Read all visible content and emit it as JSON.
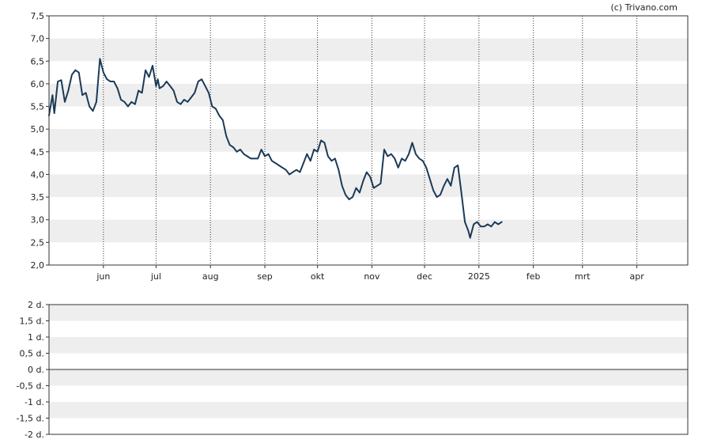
{
  "credit": "(c) Trivano.com",
  "chart_data": [
    {
      "type": "line",
      "ylim": [
        2.0,
        7.5
      ],
      "yticks": [
        "7,5",
        "7,0",
        "6,5",
        "6,0",
        "5,5",
        "5,0",
        "4,5",
        "4,0",
        "3,5",
        "3,0",
        "2,5",
        "2,0"
      ],
      "months": [
        {
          "label": "jun",
          "day": 31
        },
        {
          "label": "jul",
          "day": 61
        },
        {
          "label": "aug",
          "day": 92
        },
        {
          "label": "sep",
          "day": 123
        },
        {
          "label": "okt",
          "day": 153
        },
        {
          "label": "nov",
          "day": 184
        },
        {
          "label": "dec",
          "day": 214
        },
        {
          "label": "2025",
          "day": 245
        },
        {
          "label": "feb",
          "day": 276
        },
        {
          "label": "mrt",
          "day": 304
        },
        {
          "label": "apr",
          "day": 335
        }
      ],
      "x_start": "2024-05-01",
      "x_end": "2025-04-30",
      "line_color": "#1b3a57",
      "band_color": "#eeeeee",
      "series": [
        {
          "values": [
            [
              0,
              5.3
            ],
            [
              2,
              5.75
            ],
            [
              3,
              5.35
            ],
            [
              5,
              6.05
            ],
            [
              7,
              6.08
            ],
            [
              9,
              5.6
            ],
            [
              11,
              5.85
            ],
            [
              13,
              6.2
            ],
            [
              15,
              6.3
            ],
            [
              17,
              6.25
            ],
            [
              19,
              5.75
            ],
            [
              21,
              5.8
            ],
            [
              23,
              5.5
            ],
            [
              25,
              5.4
            ],
            [
              27,
              5.6
            ],
            [
              29,
              6.55
            ],
            [
              31,
              6.25
            ],
            [
              33,
              6.1
            ],
            [
              35,
              6.05
            ],
            [
              37,
              6.05
            ],
            [
              39,
              5.9
            ],
            [
              41,
              5.65
            ],
            [
              43,
              5.6
            ],
            [
              45,
              5.5
            ],
            [
              47,
              5.6
            ],
            [
              49,
              5.55
            ],
            [
              51,
              5.85
            ],
            [
              53,
              5.8
            ],
            [
              55,
              6.3
            ],
            [
              57,
              6.15
            ],
            [
              59,
              6.4
            ],
            [
              61,
              5.95
            ],
            [
              62,
              6.1
            ],
            [
              63,
              5.9
            ],
            [
              65,
              5.95
            ],
            [
              67,
              6.05
            ],
            [
              69,
              5.95
            ],
            [
              71,
              5.85
            ],
            [
              73,
              5.6
            ],
            [
              75,
              5.55
            ],
            [
              77,
              5.65
            ],
            [
              79,
              5.6
            ],
            [
              81,
              5.7
            ],
            [
              83,
              5.8
            ],
            [
              85,
              6.05
            ],
            [
              87,
              6.1
            ],
            [
              89,
              5.95
            ],
            [
              91,
              5.8
            ],
            [
              93,
              5.5
            ],
            [
              95,
              5.45
            ],
            [
              97,
              5.3
            ],
            [
              99,
              5.2
            ],
            [
              101,
              4.85
            ],
            [
              103,
              4.65
            ],
            [
              105,
              4.6
            ],
            [
              107,
              4.5
            ],
            [
              109,
              4.55
            ],
            [
              111,
              4.45
            ],
            [
              113,
              4.4
            ],
            [
              115,
              4.35
            ],
            [
              117,
              4.35
            ],
            [
              119,
              4.35
            ],
            [
              121,
              4.55
            ],
            [
              123,
              4.4
            ],
            [
              125,
              4.45
            ],
            [
              127,
              4.3
            ],
            [
              129,
              4.25
            ],
            [
              131,
              4.2
            ],
            [
              133,
              4.15
            ],
            [
              135,
              4.1
            ],
            [
              137,
              4.0
            ],
            [
              139,
              4.05
            ],
            [
              141,
              4.1
            ],
            [
              143,
              4.05
            ],
            [
              145,
              4.25
            ],
            [
              147,
              4.45
            ],
            [
              149,
              4.3
            ],
            [
              151,
              4.55
            ],
            [
              153,
              4.5
            ],
            [
              155,
              4.75
            ],
            [
              157,
              4.7
            ],
            [
              159,
              4.4
            ],
            [
              161,
              4.3
            ],
            [
              163,
              4.35
            ],
            [
              165,
              4.1
            ],
            [
              167,
              3.75
            ],
            [
              169,
              3.55
            ],
            [
              171,
              3.45
            ],
            [
              173,
              3.5
            ],
            [
              175,
              3.7
            ],
            [
              177,
              3.6
            ],
            [
              179,
              3.85
            ],
            [
              181,
              4.05
            ],
            [
              183,
              3.95
            ],
            [
              185,
              3.7
            ],
            [
              187,
              3.75
            ],
            [
              189,
              3.8
            ],
            [
              191,
              4.55
            ],
            [
              193,
              4.4
            ],
            [
              195,
              4.45
            ],
            [
              197,
              4.35
            ],
            [
              199,
              4.15
            ],
            [
              201,
              4.35
            ],
            [
              203,
              4.3
            ],
            [
              205,
              4.45
            ],
            [
              207,
              4.7
            ],
            [
              209,
              4.45
            ],
            [
              211,
              4.35
            ],
            [
              213,
              4.3
            ],
            [
              215,
              4.15
            ],
            [
              217,
              3.9
            ],
            [
              219,
              3.65
            ],
            [
              221,
              3.5
            ],
            [
              223,
              3.55
            ],
            [
              225,
              3.75
            ],
            [
              227,
              3.9
            ],
            [
              229,
              3.75
            ],
            [
              231,
              4.15
            ],
            [
              233,
              4.2
            ],
            [
              235,
              3.6
            ],
            [
              237,
              2.95
            ],
            [
              239,
              2.75
            ],
            [
              240,
              2.6
            ],
            [
              242,
              2.9
            ],
            [
              244,
              2.95
            ],
            [
              246,
              2.85
            ],
            [
              248,
              2.85
            ],
            [
              250,
              2.9
            ],
            [
              252,
              2.85
            ],
            [
              254,
              2.95
            ],
            [
              256,
              2.9
            ],
            [
              258,
              2.95
            ]
          ]
        }
      ]
    },
    {
      "type": "line",
      "ylim": [
        -2,
        2
      ],
      "yticks": [
        "2 d.",
        "1,5 d.",
        "1 d.",
        "0,5 d.",
        "0 d.",
        "-0,5 d.",
        "-1 d.",
        "-1,5 d.",
        "-2 d."
      ],
      "band_color": "#eeeeee",
      "series": []
    }
  ]
}
